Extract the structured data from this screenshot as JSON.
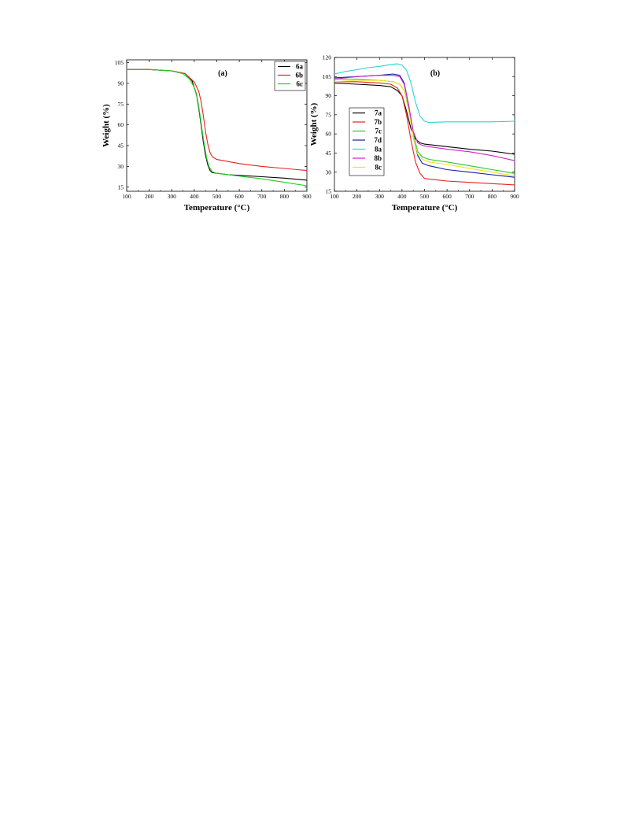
{
  "chart_data": [
    {
      "type": "line",
      "panel_label": "(a)",
      "xlabel": "Temperature (°C)",
      "ylabel": "Weight (%)",
      "xlim": [
        100,
        900
      ],
      "ylim": [
        12,
        107
      ],
      "xticks": [
        100,
        200,
        300,
        400,
        500,
        600,
        700,
        800,
        900
      ],
      "yticks": [
        15,
        30,
        45,
        60,
        75,
        90,
        105
      ],
      "legend_position": "top-right",
      "series": [
        {
          "name": "6a",
          "color": "#000000",
          "x": [
            100,
            200,
            300,
            360,
            390,
            410,
            420,
            430,
            440,
            450,
            460,
            470,
            480,
            500,
            550,
            600,
            700,
            800,
            900
          ],
          "y": [
            100,
            100,
            99,
            97,
            92,
            82,
            72,
            60,
            48,
            38,
            31,
            27,
            25.5,
            25,
            24,
            23.5,
            22.5,
            21.5,
            20
          ]
        },
        {
          "name": "6b",
          "color": "#e8221b",
          "x": [
            100,
            200,
            300,
            360,
            400,
            420,
            430,
            440,
            450,
            460,
            470,
            480,
            500,
            550,
            600,
            700,
            800,
            900
          ],
          "y": [
            100,
            100,
            99,
            97,
            91,
            84,
            77,
            67,
            55,
            46,
            40,
            37,
            35,
            33.5,
            32,
            30,
            28.5,
            27
          ]
        },
        {
          "name": "6c",
          "color": "#22cc22",
          "x": [
            100,
            200,
            300,
            350,
            380,
            400,
            415,
            425,
            435,
            445,
            455,
            465,
            480,
            500,
            550,
            600,
            700,
            800,
            900
          ],
          "y": [
            100,
            100,
            99,
            97,
            93,
            87,
            78,
            68,
            56,
            45,
            36,
            30,
            26,
            25,
            24,
            23,
            21,
            18.5,
            16
          ]
        }
      ]
    },
    {
      "type": "line",
      "panel_label": "(b)",
      "xlabel": "Temperature (°C)",
      "ylabel": "Weight (%)",
      "xlim": [
        100,
        900
      ],
      "ylim": [
        15,
        120
      ],
      "xticks": [
        100,
        200,
        300,
        400,
        500,
        600,
        700,
        800,
        900
      ],
      "yticks": [
        15,
        30,
        45,
        60,
        75,
        90,
        105,
        120
      ],
      "legend_position": "bottom-left",
      "series": [
        {
          "name": "7a",
          "color": "#000000",
          "x": [
            100,
            200,
            300,
            350,
            380,
            400,
            420,
            440,
            460,
            480,
            500,
            550,
            600,
            700,
            800,
            900
          ],
          "y": [
            100,
            99,
            98,
            97,
            94,
            90,
            78,
            64,
            56,
            53,
            52,
            51,
            50,
            48,
            46.5,
            44
          ]
        },
        {
          "name": "7b",
          "color": "#e8221b",
          "x": [
            100,
            200,
            300,
            350,
            380,
            400,
            420,
            440,
            460,
            480,
            500,
            550,
            600,
            700,
            800,
            900
          ],
          "y": [
            101,
            101,
            100,
            99,
            96,
            90,
            75,
            55,
            38,
            29,
            25,
            24,
            23,
            22,
            21,
            20
          ]
        },
        {
          "name": "7c",
          "color": "#22cc22",
          "x": [
            100,
            200,
            300,
            360,
            390,
            410,
            430,
            450,
            470,
            490,
            520,
            600,
            700,
            800,
            900
          ],
          "y": [
            103,
            103,
            102,
            101,
            99,
            94,
            80,
            60,
            46,
            42,
            40,
            38,
            35,
            32,
            29
          ]
        },
        {
          "name": "7d",
          "color": "#1a1aa6",
          "x": [
            100,
            200,
            300,
            360,
            390,
            410,
            430,
            450,
            470,
            490,
            520,
            600,
            700,
            800,
            900
          ],
          "y": [
            104,
            105,
            106,
            107,
            106,
            100,
            82,
            58,
            43,
            37,
            35,
            32,
            30,
            28,
            26
          ]
        },
        {
          "name": "8a",
          "color": "#2ad4d4",
          "x": [
            100,
            150,
            200,
            250,
            300,
            350,
            380,
            400,
            420,
            440,
            460,
            480,
            500,
            520,
            600,
            700,
            800,
            900
          ],
          "y": [
            107,
            109,
            110.5,
            112,
            113,
            114.5,
            115,
            114,
            110,
            100,
            85,
            74,
            70,
            69,
            69.5,
            69.5,
            69.5,
            70
          ]
        },
        {
          "name": "8b",
          "color": "#cc22cc",
          "x": [
            100,
            200,
            300,
            360,
            390,
            410,
            430,
            450,
            470,
            490,
            520,
            600,
            700,
            800,
            900
          ],
          "y": [
            103,
            105,
            106,
            106,
            105,
            99,
            82,
            62,
            53,
            51,
            50,
            48,
            46,
            43,
            39
          ]
        },
        {
          "name": "8c",
          "color": "#f2e21c",
          "x": [
            100,
            200,
            300,
            360,
            390,
            410,
            430,
            450,
            470,
            490,
            520,
            600,
            700,
            800,
            900
          ],
          "y": [
            101,
            102,
            102,
            101,
            99,
            94,
            78,
            58,
            44,
            40,
            38,
            36,
            33,
            30,
            27
          ]
        }
      ]
    }
  ]
}
